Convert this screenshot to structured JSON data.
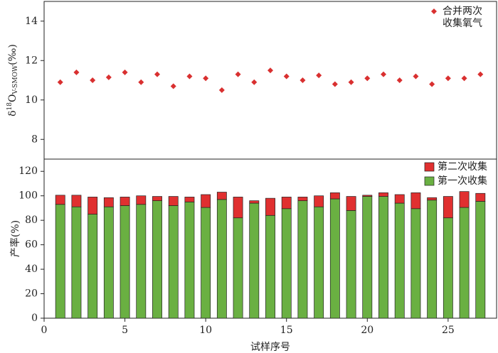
{
  "chart_data": [
    {
      "type": "scatter",
      "ylabel_parts": [
        "δ",
        "18",
        "O",
        "V-SMOW",
        "(‰)"
      ],
      "x": [
        1,
        2,
        3,
        4,
        5,
        6,
        7,
        8,
        9,
        10,
        11,
        12,
        13,
        14,
        15,
        16,
        17,
        18,
        19,
        20,
        21,
        22,
        23,
        24,
        25,
        26,
        27
      ],
      "series": [
        {
          "name": "合并两次收集氧气",
          "color": "#d93030",
          "values": [
            10.9,
            11.4,
            11.0,
            11.15,
            11.4,
            10.9,
            11.3,
            10.7,
            11.2,
            11.1,
            10.5,
            11.3,
            10.9,
            11.5,
            11.2,
            11.0,
            11.25,
            10.8,
            10.9,
            11.1,
            11.3,
            11.0,
            11.2,
            10.8,
            11.1,
            11.1,
            11.3
          ]
        }
      ],
      "xlim": [
        0,
        28
      ],
      "ylim": [
        7,
        15
      ],
      "yticks": [
        8,
        10,
        12,
        14
      ],
      "legend": "upper right"
    },
    {
      "type": "stacked_bar",
      "ylabel": "产率(%)",
      "xlabel": "试样序号",
      "x": [
        1,
        2,
        3,
        4,
        5,
        6,
        7,
        8,
        9,
        10,
        11,
        12,
        13,
        14,
        15,
        16,
        17,
        18,
        19,
        20,
        21,
        22,
        23,
        24,
        25,
        26,
        27
      ],
      "series": [
        {
          "name": "第一次收集",
          "color": "#6ab042",
          "values": [
            93,
            91,
            85,
            91,
            92,
            93,
            96,
            92,
            95,
            90.5,
            97,
            82,
            94,
            84,
            89.5,
            96,
            91,
            97.5,
            88,
            99.5,
            99.5,
            94,
            89.5,
            96.5,
            82,
            90.5,
            95.5
          ]
        },
        {
          "name": "第二次收集",
          "color": "#e03030",
          "values": [
            7.5,
            9.5,
            14,
            7.5,
            7,
            7,
            3.5,
            7.5,
            4,
            10.5,
            6,
            17,
            2,
            14,
            9.5,
            3,
            9,
            5,
            11.5,
            1,
            3,
            7,
            13,
            2,
            17.5,
            13,
            6.5
          ]
        }
      ],
      "xlim": [
        0,
        28
      ],
      "xticks": [
        0,
        5,
        10,
        15,
        20,
        25
      ],
      "ylim": [
        0,
        130
      ],
      "yticks": [
        0,
        20,
        40,
        60,
        80,
        100,
        120
      ],
      "legend": "upper right"
    }
  ]
}
